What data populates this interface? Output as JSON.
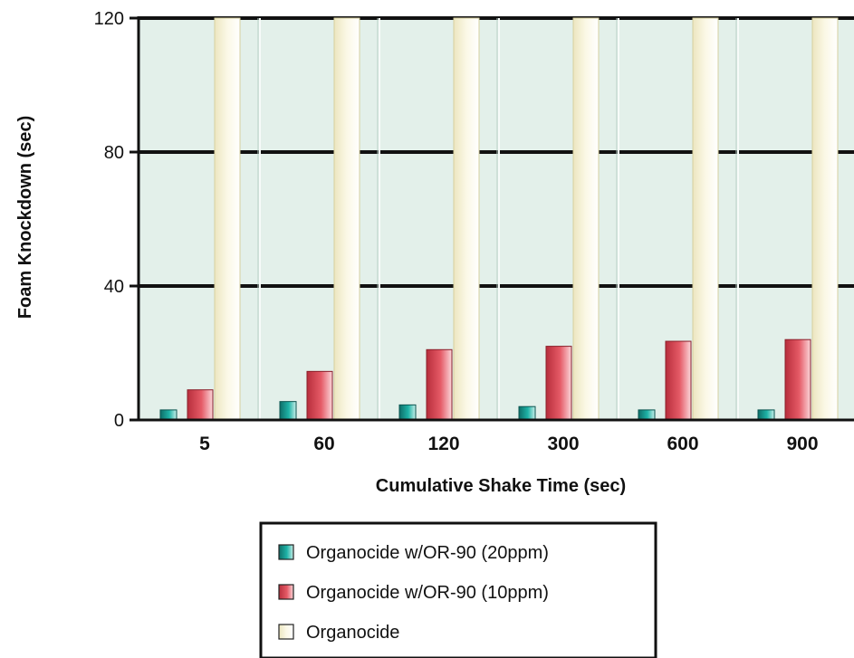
{
  "chart_data": {
    "type": "bar",
    "xlabel": "Cumulative Shake Time (sec)",
    "ylabel": "Foam Knockdown (sec)",
    "categories": [
      "5",
      "60",
      "120",
      "300",
      "600",
      "900"
    ],
    "ylim": [
      0,
      120
    ],
    "yticks": [
      "0",
      "40",
      "80",
      "120"
    ],
    "grid": true,
    "legend_position": "bottom-center",
    "series": [
      {
        "name": "Organocide w/OR-90 (20ppm)",
        "values": [
          3,
          5.5,
          4.5,
          4,
          3,
          3
        ],
        "color": "#1aa59a"
      },
      {
        "name": "Organocide w/OR-90 (10ppm)",
        "values": [
          9,
          14.5,
          21,
          22,
          23.5,
          24
        ],
        "color": "#e0525e"
      },
      {
        "name": "Organocide",
        "values": [
          120,
          120,
          120,
          120,
          120,
          120
        ],
        "color": "#f8f4dc"
      }
    ],
    "colors": {
      "plot_background": "#e3f0ea",
      "gridline": "#111111"
    }
  }
}
